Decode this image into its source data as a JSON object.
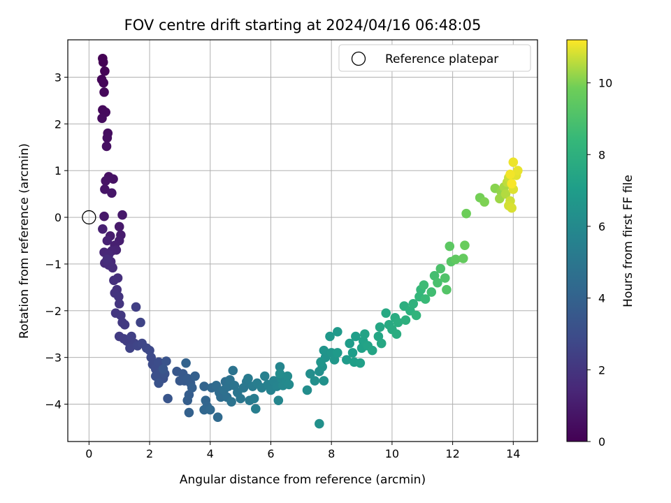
{
  "chart_data": {
    "type": "scatter",
    "title": "FOV centre drift starting at 2024/04/16 06:48:05",
    "xlabel": "Angular distance from reference (arcmin)",
    "ylabel": "Rotation from reference (arcmin)",
    "xlim": [
      -0.7,
      14.8
    ],
    "ylim": [
      -4.8,
      3.8
    ],
    "xticks": [
      0,
      2,
      4,
      6,
      8,
      10,
      12,
      14
    ],
    "yticks": [
      -4,
      -3,
      -2,
      -1,
      0,
      1,
      2,
      3
    ],
    "grid": true,
    "legend": {
      "position": "top-right",
      "entries": [
        "Reference platepar"
      ]
    },
    "reference_point": {
      "name": "Reference platepar",
      "x": 0,
      "y": 0
    },
    "colorbar": {
      "label": "Hours from first FF file",
      "range": [
        0,
        11.2
      ],
      "ticks": [
        0,
        2,
        4,
        6,
        8,
        10
      ],
      "colormap": "viridis"
    },
    "points": [
      [
        0.45,
        3.4,
        0.02
      ],
      [
        0.47,
        3.32,
        0.05
      ],
      [
        0.52,
        3.13,
        0.1
      ],
      [
        0.42,
        2.95,
        0.15
      ],
      [
        0.48,
        2.88,
        0.2
      ],
      [
        0.5,
        2.68,
        0.25
      ],
      [
        0.45,
        2.3,
        0.3
      ],
      [
        0.55,
        2.25,
        0.35
      ],
      [
        0.43,
        2.12,
        0.4
      ],
      [
        0.62,
        1.8,
        0.45
      ],
      [
        0.6,
        1.7,
        0.5
      ],
      [
        0.58,
        1.52,
        0.55
      ],
      [
        0.65,
        0.87,
        0.6
      ],
      [
        0.8,
        0.82,
        0.65
      ],
      [
        0.55,
        0.78,
        0.7
      ],
      [
        0.52,
        0.6,
        0.75
      ],
      [
        0.75,
        0.52,
        0.8
      ],
      [
        0.5,
        0.02,
        0.85
      ],
      [
        1.1,
        0.05,
        0.9
      ],
      [
        1.0,
        -0.2,
        0.95
      ],
      [
        1.05,
        -0.38,
        1.0
      ],
      [
        0.7,
        -0.4,
        1.05
      ],
      [
        1.0,
        -0.5,
        1.1
      ],
      [
        0.85,
        -0.6,
        1.15
      ],
      [
        0.45,
        -0.25,
        1.2
      ],
      [
        0.6,
        -0.5,
        1.25
      ],
      [
        0.9,
        -0.7,
        1.3
      ],
      [
        0.75,
        -0.72,
        1.35
      ],
      [
        0.5,
        -0.75,
        1.4
      ],
      [
        0.65,
        -0.8,
        1.45
      ],
      [
        0.72,
        -0.95,
        1.5
      ],
      [
        0.52,
        -0.98,
        1.55
      ],
      [
        0.65,
        -1.02,
        1.6
      ],
      [
        0.78,
        -1.08,
        1.65
      ],
      [
        0.6,
        -0.9,
        1.7
      ],
      [
        0.95,
        -1.3,
        1.75
      ],
      [
        0.82,
        -1.35,
        1.8
      ],
      [
        0.92,
        -1.55,
        1.85
      ],
      [
        0.85,
        -1.62,
        1.9
      ],
      [
        0.98,
        -1.7,
        1.95
      ],
      [
        1.0,
        -1.85,
        2.0
      ],
      [
        0.88,
        -2.05,
        2.05
      ],
      [
        1.05,
        -2.1,
        2.1
      ],
      [
        1.1,
        -2.25,
        2.15
      ],
      [
        1.18,
        -2.3,
        2.2
      ],
      [
        1.0,
        -2.55,
        2.25
      ],
      [
        1.15,
        -2.6,
        2.3
      ],
      [
        1.25,
        -2.65,
        2.35
      ],
      [
        1.55,
        -1.92,
        2.4
      ],
      [
        1.4,
        -2.55,
        2.45
      ],
      [
        1.5,
        -2.7,
        2.5
      ],
      [
        1.35,
        -2.8,
        2.55
      ],
      [
        1.7,
        -2.25,
        2.6
      ],
      [
        1.6,
        -2.75,
        2.65
      ],
      [
        1.75,
        -2.7,
        2.7
      ],
      [
        1.9,
        -2.8,
        2.75
      ],
      [
        2.0,
        -2.85,
        2.8
      ],
      [
        2.05,
        -3.0,
        2.85
      ],
      [
        2.1,
        -3.15,
        2.9
      ],
      [
        2.2,
        -3.25,
        2.95
      ],
      [
        2.3,
        -3.1,
        3.0
      ],
      [
        2.35,
        -3.3,
        3.05
      ],
      [
        2.2,
        -3.4,
        3.1
      ],
      [
        2.45,
        -3.45,
        3.15
      ],
      [
        2.5,
        -3.35,
        3.2
      ],
      [
        2.3,
        -3.55,
        3.25
      ],
      [
        2.55,
        -3.08,
        3.3
      ],
      [
        2.6,
        -3.88,
        3.35
      ],
      [
        2.45,
        -3.25,
        3.4
      ],
      [
        2.9,
        -3.3,
        3.45
      ],
      [
        3.0,
        -3.5,
        3.5
      ],
      [
        3.1,
        -3.35,
        3.55
      ],
      [
        3.15,
        -3.5,
        3.6
      ],
      [
        3.25,
        -3.45,
        3.65
      ],
      [
        3.35,
        -3.55,
        3.7
      ],
      [
        3.3,
        -3.8,
        3.75
      ],
      [
        3.25,
        -3.92,
        3.8
      ],
      [
        3.4,
        -3.65,
        3.85
      ],
      [
        3.5,
        -3.4,
        3.9
      ],
      [
        3.3,
        -4.18,
        3.95
      ],
      [
        3.2,
        -3.12,
        4.0
      ],
      [
        3.8,
        -3.62,
        4.05
      ],
      [
        3.85,
        -3.92,
        4.1
      ],
      [
        3.9,
        -4.05,
        4.15
      ],
      [
        3.8,
        -4.12,
        4.2
      ],
      [
        4.05,
        -3.65,
        4.25
      ],
      [
        4.0,
        -4.12,
        4.3
      ],
      [
        4.25,
        -4.28,
        4.35
      ],
      [
        4.2,
        -3.6,
        4.4
      ],
      [
        4.3,
        -3.75,
        4.45
      ],
      [
        4.35,
        -3.85,
        4.5
      ],
      [
        4.5,
        -3.52,
        4.55
      ],
      [
        4.55,
        -3.85,
        4.6
      ],
      [
        4.45,
        -3.7,
        4.65
      ],
      [
        4.6,
        -3.62,
        4.7
      ],
      [
        4.65,
        -3.48,
        4.75
      ],
      [
        4.7,
        -3.95,
        4.8
      ],
      [
        4.75,
        -3.28,
        4.85
      ],
      [
        4.8,
        -3.6,
        4.9
      ],
      [
        4.9,
        -3.75,
        4.95
      ],
      [
        5.0,
        -3.88,
        5.0
      ],
      [
        5.1,
        -3.65,
        5.05
      ],
      [
        5.2,
        -3.52,
        5.1
      ],
      [
        5.3,
        -3.92,
        5.15
      ],
      [
        5.25,
        -3.45,
        5.2
      ],
      [
        5.4,
        -3.62,
        5.25
      ],
      [
        5.45,
        -3.88,
        5.3
      ],
      [
        5.55,
        -3.55,
        5.35
      ],
      [
        5.5,
        -4.1,
        5.4
      ],
      [
        5.7,
        -3.65,
        5.45
      ],
      [
        5.8,
        -3.4,
        5.5
      ],
      [
        5.9,
        -3.58,
        5.55
      ],
      [
        6.0,
        -3.7,
        5.6
      ],
      [
        6.1,
        -3.5,
        5.65
      ],
      [
        6.2,
        -3.62,
        5.7
      ],
      [
        6.3,
        -3.2,
        5.75
      ],
      [
        6.25,
        -3.92,
        5.8
      ],
      [
        6.35,
        -3.45,
        5.85
      ],
      [
        6.4,
        -3.6,
        5.9
      ],
      [
        6.5,
        -3.5,
        5.95
      ],
      [
        6.6,
        -3.58,
        6.0
      ],
      [
        6.55,
        -3.4,
        6.05
      ],
      [
        6.3,
        -3.35,
        6.1
      ],
      [
        7.2,
        -3.7,
        6.15
      ],
      [
        7.3,
        -3.35,
        6.2
      ],
      [
        7.45,
        -3.5,
        6.25
      ],
      [
        7.6,
        -3.3,
        6.3
      ],
      [
        7.6,
        -4.42,
        6.35
      ],
      [
        7.75,
        -3.5,
        6.4
      ],
      [
        7.7,
        -3.2,
        6.45
      ],
      [
        7.8,
        -3.0,
        6.5
      ],
      [
        7.75,
        -2.85,
        6.55
      ],
      [
        7.65,
        -3.1,
        6.6
      ],
      [
        8.0,
        -2.9,
        6.65
      ],
      [
        8.1,
        -3.05,
        6.7
      ],
      [
        7.95,
        -2.55,
        6.75
      ],
      [
        8.2,
        -2.45,
        6.8
      ],
      [
        8.2,
        -2.9,
        6.85
      ],
      [
        8.5,
        -3.05,
        6.9
      ],
      [
        8.6,
        -2.7,
        6.95
      ],
      [
        8.7,
        -2.9,
        7.0
      ],
      [
        8.8,
        -2.55,
        7.05
      ],
      [
        8.75,
        -3.1,
        7.1
      ],
      [
        8.95,
        -3.12,
        7.15
      ],
      [
        9.0,
        -2.8,
        7.2
      ],
      [
        9.05,
        -2.65,
        7.25
      ],
      [
        9.1,
        -2.5,
        7.3
      ],
      [
        9.2,
        -2.75,
        7.35
      ],
      [
        9.35,
        -2.85,
        7.4
      ],
      [
        9.55,
        -2.55,
        7.45
      ],
      [
        9.6,
        -2.35,
        7.5
      ],
      [
        9.65,
        -2.7,
        7.55
      ],
      [
        9.8,
        -2.05,
        7.6
      ],
      [
        9.9,
        -2.3,
        7.65
      ],
      [
        10.0,
        -2.4,
        7.7
      ],
      [
        10.1,
        -2.15,
        7.75
      ],
      [
        10.15,
        -2.5,
        7.8
      ],
      [
        10.2,
        -2.25,
        7.85
      ],
      [
        10.4,
        -1.9,
        7.9
      ],
      [
        10.45,
        -2.2,
        7.95
      ],
      [
        10.6,
        -2.0,
        8.0
      ],
      [
        10.7,
        -1.85,
        8.1
      ],
      [
        10.8,
        -2.1,
        8.2
      ],
      [
        10.9,
        -1.7,
        8.3
      ],
      [
        10.95,
        -1.55,
        8.4
      ],
      [
        11.1,
        -1.75,
        8.5
      ],
      [
        11.05,
        -1.45,
        8.6
      ],
      [
        11.3,
        -1.6,
        8.7
      ],
      [
        11.4,
        -1.25,
        8.8
      ],
      [
        11.5,
        -1.4,
        8.9
      ],
      [
        11.6,
        -1.1,
        9.0
      ],
      [
        11.75,
        -1.3,
        9.1
      ],
      [
        11.8,
        -1.55,
        9.2
      ],
      [
        11.95,
        -0.95,
        9.3
      ],
      [
        11.9,
        -0.62,
        9.4
      ],
      [
        12.1,
        -0.9,
        9.5
      ],
      [
        12.35,
        -0.88,
        9.6
      ],
      [
        12.4,
        -0.6,
        9.7
      ],
      [
        12.45,
        0.08,
        9.8
      ],
      [
        12.9,
        0.42,
        9.9
      ],
      [
        13.05,
        0.33,
        10.0
      ],
      [
        13.4,
        0.62,
        10.1
      ],
      [
        13.6,
        0.55,
        10.2
      ],
      [
        13.55,
        0.4,
        10.3
      ],
      [
        13.7,
        0.65,
        10.4
      ],
      [
        13.75,
        0.5,
        10.5
      ],
      [
        13.8,
        0.75,
        10.6
      ],
      [
        13.85,
        0.85,
        10.7
      ],
      [
        13.9,
        0.35,
        10.75
      ],
      [
        13.85,
        0.25,
        10.8
      ],
      [
        13.95,
        0.2,
        10.85
      ],
      [
        14.0,
        0.6,
        10.9
      ],
      [
        14.1,
        0.9,
        10.95
      ],
      [
        14.15,
        1.0,
        11.0
      ],
      [
        14.0,
        1.18,
        11.05
      ],
      [
        13.9,
        0.92,
        11.1
      ],
      [
        13.95,
        0.72,
        11.15
      ]
    ]
  }
}
